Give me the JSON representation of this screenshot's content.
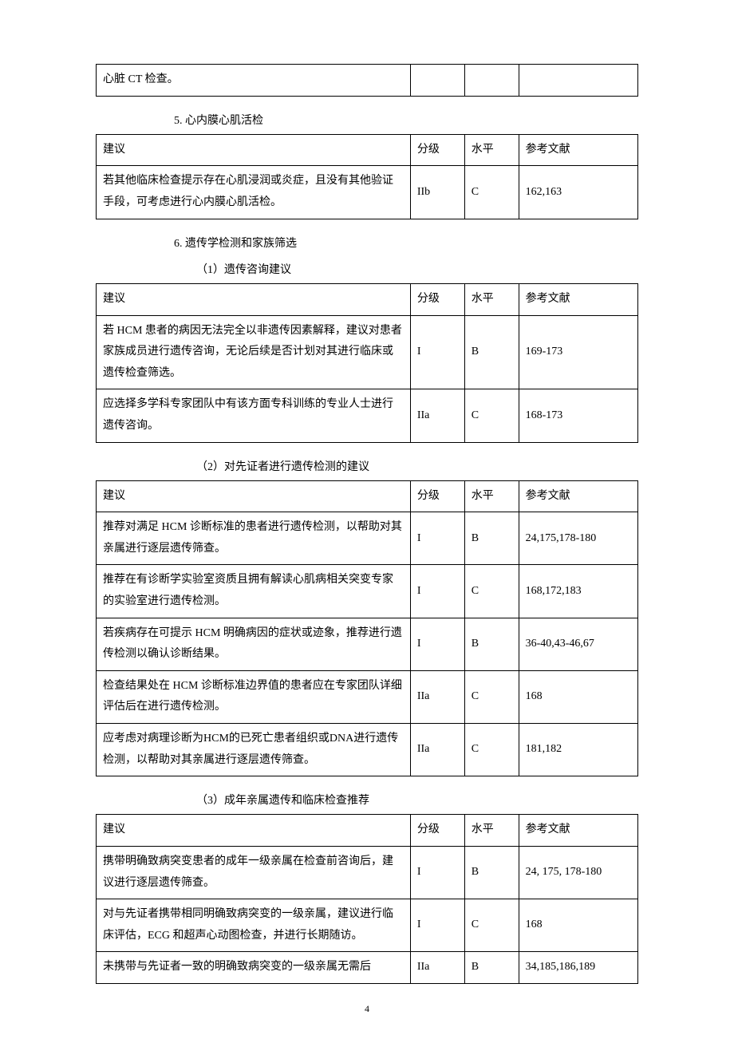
{
  "topTable": {
    "row": {
      "reco": "心脏 CT 检查。",
      "grade": "",
      "level": "",
      "ref": ""
    }
  },
  "section5": {
    "heading": "5. 心内膜心肌活检",
    "header": {
      "reco": "建议",
      "grade": "分级",
      "level": "水平",
      "ref": "参考文献"
    },
    "rows": [
      {
        "reco": "若其他临床检查提示存在心肌浸润或炎症，且没有其他验证手段，可考虑进行心内膜心肌活检。",
        "grade": "IIb",
        "level": "C",
        "ref": "162,163"
      }
    ]
  },
  "section6": {
    "heading": "6. 遗传学检测和家族筛选",
    "sub1": {
      "heading": "（1）遗传咨询建议",
      "header": {
        "reco": "建议",
        "grade": "分级",
        "level": "水平",
        "ref": "参考文献"
      },
      "rows": [
        {
          "reco": "若 HCM 患者的病因无法完全以非遗传因素解释，建议对患者家族成员进行遗传咨询，无论后续是否计划对其进行临床或遗传检查筛选。",
          "grade": "I",
          "level": "B",
          "ref": "169-173"
        },
        {
          "reco": "应选择多学科专家团队中有该方面专科训练的专业人士进行遗传咨询。",
          "grade": "IIa",
          "level": "C",
          "ref": "168-173"
        }
      ]
    },
    "sub2": {
      "heading": "（2）对先证者进行遗传检测的建议",
      "header": {
        "reco": "建议",
        "grade": "分级",
        "level": "水平",
        "ref": "参考文献"
      },
      "rows": [
        {
          "reco": "推荐对满足 HCM 诊断标准的患者进行遗传检测，以帮助对其亲属进行逐层遗传筛查。",
          "grade": "I",
          "level": "B",
          "ref": "24,175,178-180"
        },
        {
          "reco": "推荐在有诊断学实验室资质且拥有解读心肌病相关突变专家的实验室进行遗传检测。",
          "grade": "I",
          "level": "C",
          "ref": "168,172,183"
        },
        {
          "reco": "若疾病存在可提示 HCM 明确病因的症状或迹象，推荐进行遗传检测以确认诊断结果。",
          "grade": "I",
          "level": "B",
          "ref": "36-40,43-46,67"
        },
        {
          "reco": "检查结果处在 HCM 诊断标准边界值的患者应在专家团队详细评估后在进行遗传检测。",
          "grade": "IIa",
          "level": "C",
          "ref": "168"
        },
        {
          "reco": "应考虑对病理诊断为HCM的已死亡患者组织或DNA进行遗传检测，以帮助对其亲属进行逐层遗传筛查。",
          "grade": "IIa",
          "level": "C",
          "ref": "181,182"
        }
      ]
    },
    "sub3": {
      "heading": "（3）成年亲属遗传和临床检查推荐",
      "header": {
        "reco": "建议",
        "grade": "分级",
        "level": "水平",
        "ref": "参考文献"
      },
      "rows": [
        {
          "reco": "携带明确致病突变患者的成年一级亲属在检查前咨询后，建议进行逐层遗传筛查。",
          "grade": "I",
          "level": "B",
          "ref": "24, 175, 178-180"
        },
        {
          "reco": "对与先证者携带相同明确致病突变的一级亲属，建议进行临床评估，ECG 和超声心动图检查，并进行长期随访。",
          "grade": "I",
          "level": "C",
          "ref": "168"
        },
        {
          "reco": "未携带与先证者一致的明确致病突变的一级亲属无需后",
          "grade": "IIa",
          "level": "B",
          "ref": "34,185,186,189"
        }
      ]
    }
  },
  "pageNumber": "4"
}
